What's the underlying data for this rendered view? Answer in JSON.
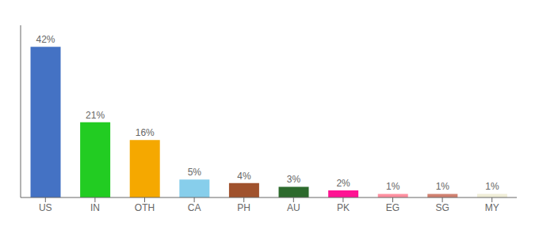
{
  "chart_data": {
    "type": "bar",
    "categories": [
      "US",
      "IN",
      "OTH",
      "CA",
      "PH",
      "AU",
      "PK",
      "EG",
      "SG",
      "MY"
    ],
    "values": [
      42,
      21,
      16,
      5,
      4,
      3,
      2,
      1,
      1,
      1
    ],
    "value_labels": [
      "42%",
      "21%",
      "16%",
      "5%",
      "4%",
      "3%",
      "2%",
      "1%",
      "1%",
      "1%"
    ],
    "colors": [
      "#4472c4",
      "#22cc22",
      "#f5a800",
      "#87ceeb",
      "#a0522d",
      "#2d6a2d",
      "#ff1493",
      "#ff8fa0",
      "#d08070",
      "#f0eed8"
    ],
    "ylim": [
      0,
      48
    ],
    "data_labels": true,
    "tick_labels": "x",
    "grid": false
  }
}
